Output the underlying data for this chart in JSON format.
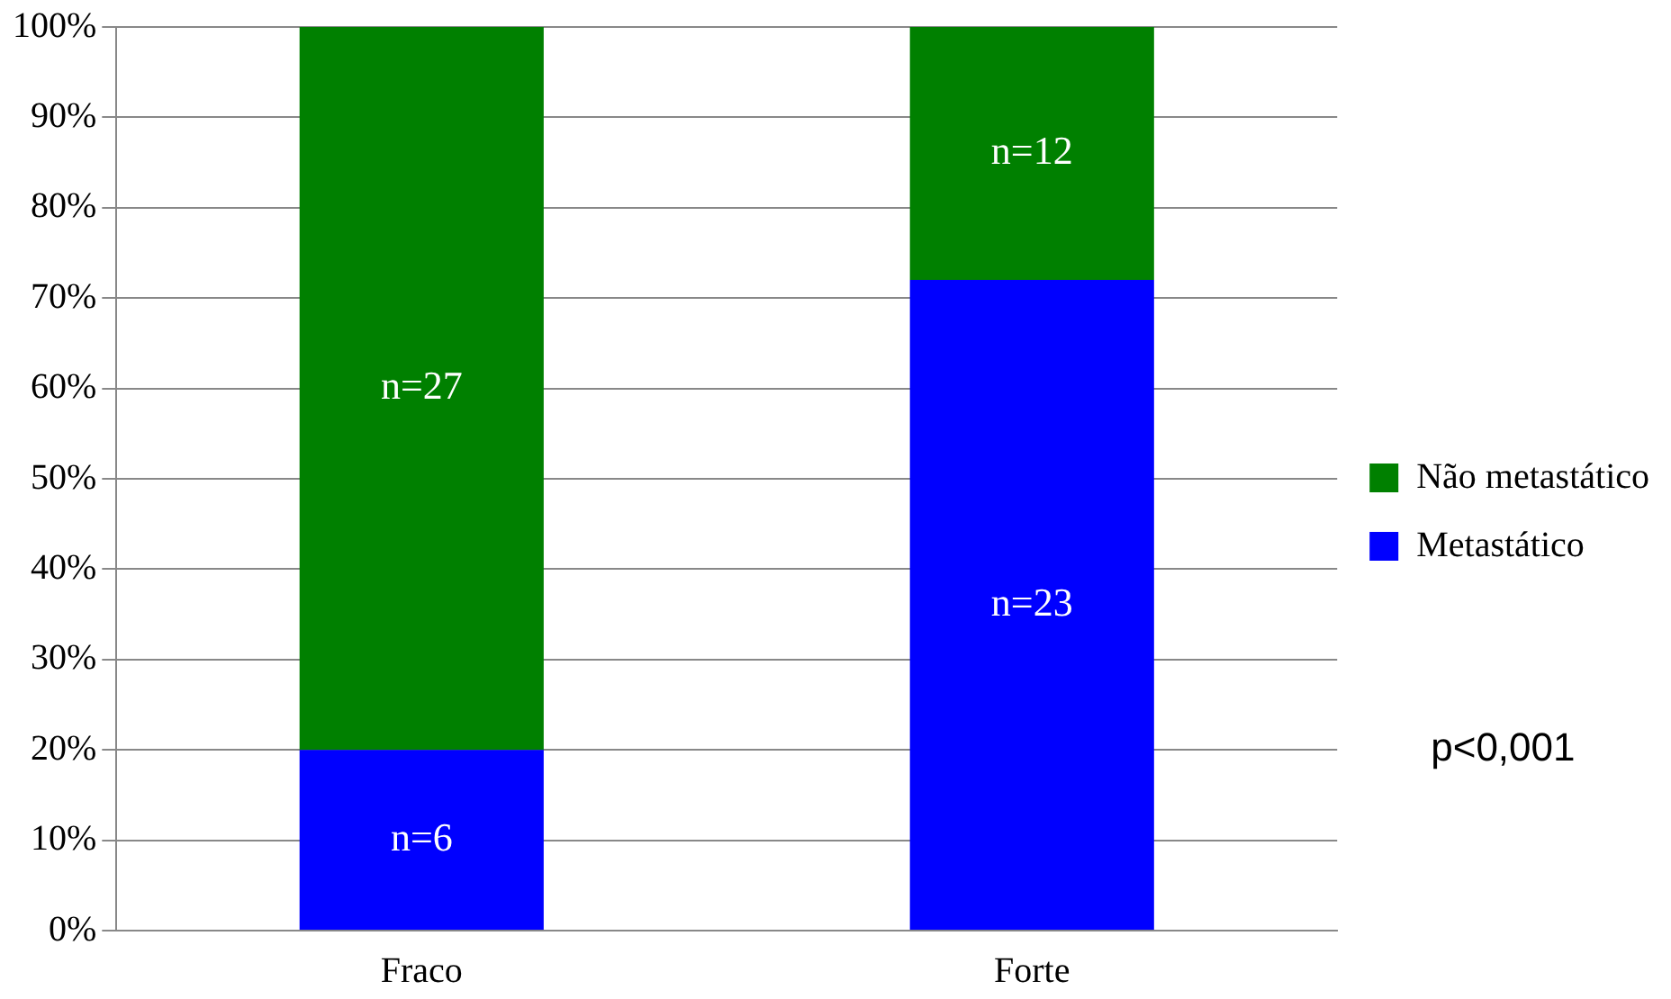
{
  "chart_data": {
    "type": "bar",
    "stacked": true,
    "categories": [
      "Fraco",
      "Forte"
    ],
    "series": [
      {
        "name": "Metastático",
        "color": "#0000ff",
        "values": [
          20,
          72
        ]
      },
      {
        "name": "Não metastático",
        "color": "#008000",
        "values": [
          80,
          28
        ]
      }
    ],
    "ylim": [
      0,
      100
    ],
    "yticks": [
      {
        "value": 0,
        "label": "0%"
      },
      {
        "value": 10,
        "label": "10%"
      },
      {
        "value": 20,
        "label": "20%"
      },
      {
        "value": 30,
        "label": "30%"
      },
      {
        "value": 40,
        "label": "40%"
      },
      {
        "value": 50,
        "label": "50%"
      },
      {
        "value": 60,
        "label": "60%"
      },
      {
        "value": 70,
        "label": "70%"
      },
      {
        "value": 80,
        "label": "80%"
      },
      {
        "value": 90,
        "label": "90%"
      },
      {
        "value": 100,
        "label": "100%"
      }
    ],
    "grid": "y",
    "legend": "right",
    "annotations": [
      "n=6",
      "n=27",
      "n=23",
      "n=12",
      "p<0,001"
    ]
  }
}
